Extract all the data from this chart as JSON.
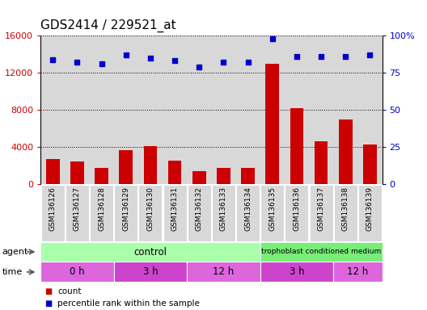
{
  "title": "GDS2414 / 229521_at",
  "samples": [
    "GSM136126",
    "GSM136127",
    "GSM136128",
    "GSM136129",
    "GSM136130",
    "GSM136131",
    "GSM136132",
    "GSM136133",
    "GSM136134",
    "GSM136135",
    "GSM136136",
    "GSM136137",
    "GSM136138",
    "GSM136139"
  ],
  "counts": [
    2700,
    2500,
    1800,
    3700,
    4100,
    2600,
    1400,
    1800,
    1800,
    13000,
    8200,
    4600,
    7000,
    4300
  ],
  "percentile": [
    84,
    82,
    81,
    87,
    85,
    83,
    79,
    82,
    82,
    98,
    86,
    86,
    86,
    87
  ],
  "bar_color": "#cc0000",
  "dot_color": "#0000cc",
  "ylim_left": [
    0,
    16000
  ],
  "ylim_right": [
    0,
    100
  ],
  "yticks_left": [
    0,
    4000,
    8000,
    12000,
    16000
  ],
  "yticks_right": [
    0,
    25,
    50,
    75,
    100
  ],
  "yticklabels_right": [
    "0",
    "25",
    "50",
    "75",
    "100%"
  ],
  "tick_box_color": "#d8d8d8",
  "control_color": "#aaffaa",
  "tcm_color": "#77ee77",
  "time_color_alt": "#dd66dd",
  "time_color_main": "#cc44cc",
  "bg_color": "#ffffff"
}
